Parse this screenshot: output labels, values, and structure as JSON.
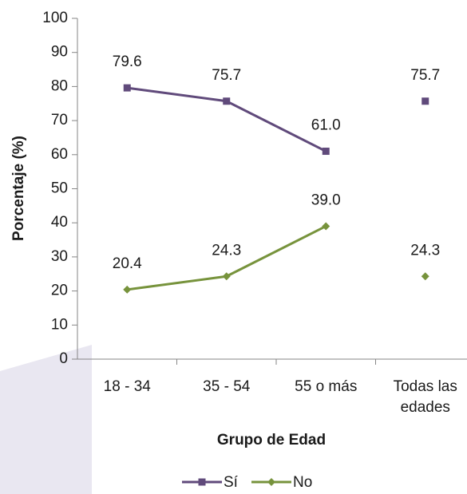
{
  "chart_data": {
    "type": "line",
    "y_label": "Porcentaje (%)",
    "x_label": "Grupo de Edad",
    "categories": [
      "18 - 34",
      "35 - 54",
      "55 o más",
      "Todas las edades"
    ],
    "standalone_categories": [
      3
    ],
    "series": [
      {
        "name": "Sí",
        "color": "#604a7b",
        "marker": "square",
        "values": [
          79.6,
          75.7,
          61.0,
          75.7
        ],
        "value_labels": [
          "79.6",
          "75.7",
          "61.0",
          "75.7"
        ]
      },
      {
        "name": "No",
        "color": "#77933c",
        "marker": "diamond",
        "values": [
          20.4,
          24.3,
          39.0,
          24.3
        ],
        "value_labels": [
          "20.4",
          "24.3",
          "39.0",
          "24.3"
        ]
      }
    ],
    "ylim": [
      0,
      100
    ],
    "yticks": [
      0,
      10,
      20,
      30,
      40,
      50,
      60,
      70,
      80,
      90,
      100
    ],
    "legend": "bottom"
  }
}
